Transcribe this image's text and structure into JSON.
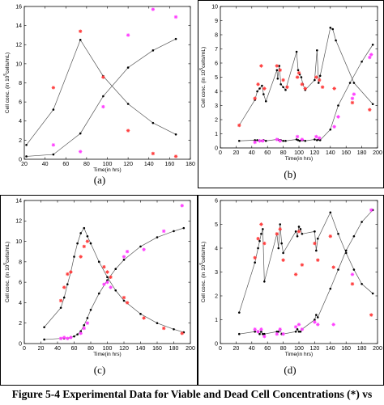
{
  "figure_caption": "Figure 5-4 Experimental Data for Viable and Dead Cell Concentrations (*) vs",
  "colors": {
    "model_line": "#555555",
    "model_marker": "#000000",
    "viable_data": "#ff4040",
    "dead_data": "#ff40ff"
  },
  "chart_data": [
    {
      "panel": "(a)",
      "type": "line",
      "xlabel": "Time(in hrs)",
      "ylabel": "Cell conc. (in 10^5cells/mL)",
      "xlim": [
        20,
        180
      ],
      "ylim": [
        0,
        16
      ],
      "xticks": [
        20,
        40,
        60,
        80,
        100,
        120,
        140,
        160,
        180
      ],
      "yticks": [
        0,
        2,
        4,
        6,
        8,
        10,
        12,
        14,
        16
      ],
      "series": [
        {
          "role": "model-viable",
          "style": "line-dots",
          "x": [
            22,
            48,
            74,
            96,
            120,
            144,
            166
          ],
          "y": [
            1.5,
            5.2,
            12.5,
            8.7,
            5.8,
            3.8,
            2.6
          ]
        },
        {
          "role": "model-dead",
          "style": "line-dots",
          "x": [
            22,
            48,
            74,
            96,
            120,
            144,
            166
          ],
          "y": [
            0.3,
            0.5,
            2.7,
            6.6,
            9.6,
            11.4,
            12.6
          ]
        },
        {
          "role": "data-viable",
          "style": "stars",
          "x": [
            48,
            74,
            96,
            120,
            144,
            166
          ],
          "y": [
            7.5,
            13.4,
            8.6,
            3.0,
            0.6,
            0.3
          ]
        },
        {
          "role": "data-dead",
          "style": "stars",
          "x": [
            48,
            74,
            96,
            120,
            144,
            166
          ],
          "y": [
            1.5,
            0.8,
            5.5,
            13.0,
            15.7,
            14.9
          ]
        }
      ]
    },
    {
      "panel": "(b)",
      "type": "line",
      "xlabel": "Time(in hrs)",
      "ylabel": "Cell conc. (in 10^5cells/mL)",
      "xlim": [
        0,
        200
      ],
      "ylim": [
        0,
        10
      ],
      "xticks": [
        0,
        20,
        40,
        60,
        80,
        100,
        120,
        140,
        160,
        180,
        200
      ],
      "yticks": [
        0,
        1,
        2,
        3,
        4,
        5,
        6,
        7,
        8,
        9,
        10
      ],
      "series": [
        {
          "role": "model-viable",
          "style": "line-dots",
          "x": [
            24,
            44,
            47,
            50,
            53,
            55,
            58,
            72,
            73,
            75,
            77,
            80,
            83,
            97,
            99,
            101,
            103,
            105,
            108,
            120,
            123,
            125,
            127,
            140,
            143,
            147,
            170,
            194
          ],
          "y": [
            1.6,
            3.4,
            4.0,
            4.2,
            4.4,
            3.8,
            3.3,
            5.5,
            4.9,
            5.8,
            4.5,
            4.3,
            4.1,
            6.8,
            5.5,
            5.2,
            5.0,
            4.5,
            4.1,
            4.8,
            6.9,
            4.6,
            5.1,
            8.5,
            8.4,
            7.6,
            4.6,
            3.1
          ]
        },
        {
          "role": "model-dead",
          "style": "line-dots",
          "x": [
            24,
            44,
            47,
            50,
            53,
            55,
            58,
            72,
            73,
            75,
            77,
            80,
            83,
            97,
            99,
            101,
            103,
            105,
            108,
            120,
            123,
            125,
            127,
            140,
            150,
            165,
            180,
            194
          ],
          "y": [
            0.5,
            0.55,
            0.55,
            0.5,
            0.5,
            0.55,
            0.5,
            0.6,
            0.6,
            0.55,
            0.55,
            0.5,
            0.5,
            0.6,
            0.55,
            0.5,
            0.55,
            0.55,
            0.5,
            0.6,
            0.55,
            0.6,
            0.55,
            1.3,
            3.0,
            4.6,
            6.1,
            7.3
          ]
        },
        {
          "role": "data-viable",
          "style": "stars",
          "x": [
            24,
            44,
            48,
            52,
            56,
            72,
            76,
            80,
            85,
            98,
            100,
            104,
            108,
            122,
            126,
            130,
            145,
            168,
            190
          ],
          "y": [
            1.6,
            3.5,
            4.5,
            5.8,
            4.2,
            5.8,
            5.5,
            4.8,
            4.3,
            5.0,
            5.3,
            4.5,
            4.2,
            5.0,
            4.8,
            4.3,
            4.2,
            3.2,
            2.7
          ]
        },
        {
          "role": "data-dead",
          "style": "stars",
          "x": [
            44,
            50,
            54,
            72,
            76,
            98,
            104,
            122,
            126,
            145,
            150,
            168,
            170,
            190,
            192
          ],
          "y": [
            0.4,
            0.5,
            0.5,
            0.6,
            0.5,
            0.8,
            0.6,
            0.8,
            0.7,
            1.5,
            2.2,
            3.5,
            3.8,
            6.4,
            6.6
          ]
        }
      ]
    },
    {
      "panel": "(c)",
      "type": "line",
      "xlabel": "Time(in hrs)",
      "ylabel": "Cell conc. (in 10^5cells/mL)",
      "xlim": [
        0,
        200
      ],
      "ylim": [
        0,
        14
      ],
      "xticks": [
        0,
        20,
        40,
        60,
        80,
        100,
        120,
        140,
        160,
        180,
        200
      ],
      "yticks": [
        0,
        2,
        4,
        6,
        8,
        10,
        12,
        14
      ],
      "series": [
        {
          "role": "model-viable",
          "style": "line-dots",
          "x": [
            24,
            44,
            48,
            52,
            56,
            60,
            64,
            68,
            72,
            76,
            80,
            90,
            100,
            110,
            120,
            140,
            160,
            180,
            192
          ],
          "y": [
            1.6,
            3.5,
            4.5,
            5.8,
            7.0,
            8.5,
            9.8,
            10.8,
            11.3,
            10.5,
            9.8,
            8.0,
            6.5,
            5.2,
            4.2,
            2.9,
            2.0,
            1.4,
            1.1
          ]
        },
        {
          "role": "model-dead",
          "style": "line-dots",
          "x": [
            24,
            44,
            48,
            52,
            56,
            60,
            64,
            68,
            72,
            76,
            80,
            90,
            100,
            110,
            120,
            140,
            160,
            180,
            192
          ],
          "y": [
            0.4,
            0.5,
            0.5,
            0.5,
            0.6,
            0.7,
            0.9,
            1.2,
            1.8,
            2.5,
            3.3,
            4.9,
            6.2,
            7.3,
            8.2,
            9.5,
            10.4,
            11.0,
            11.3
          ]
        },
        {
          "role": "data-viable",
          "style": "stars",
          "x": [
            44,
            48,
            52,
            56,
            68,
            72,
            76,
            96,
            100,
            104,
            120,
            124,
            144,
            168,
            190
          ],
          "y": [
            4.2,
            5.5,
            6.8,
            7.0,
            8.5,
            9.5,
            10.0,
            7.5,
            7.0,
            6.5,
            4.5,
            4.0,
            2.5,
            1.5,
            1.0
          ]
        },
        {
          "role": "data-dead",
          "style": "stars",
          "x": [
            44,
            48,
            52,
            56,
            68,
            72,
            76,
            96,
            100,
            104,
            120,
            124,
            144,
            168,
            190
          ],
          "y": [
            0.5,
            0.6,
            0.5,
            0.6,
            1.0,
            1.5,
            2.0,
            5.8,
            6.0,
            5.5,
            8.5,
            9.0,
            9.2,
            11.0,
            13.5
          ]
        }
      ]
    },
    {
      "panel": "(d)",
      "type": "line",
      "xlabel": "Time(in hrs)",
      "ylabel": "Cell conc. (in 10^5cells/mL)",
      "xlim": [
        0,
        200
      ],
      "ylim": [
        0,
        6
      ],
      "xticks": [
        0,
        20,
        40,
        60,
        80,
        100,
        120,
        140,
        160,
        180,
        200
      ],
      "yticks": [
        0,
        1,
        2,
        3,
        4,
        5,
        6
      ],
      "series": [
        {
          "role": "model-viable",
          "style": "line-dots",
          "x": [
            24,
            44,
            48,
            50,
            52,
            54,
            56,
            72,
            74,
            76,
            78,
            80,
            96,
            98,
            100,
            102,
            104,
            120,
            122,
            124,
            140,
            150,
            160,
            170,
            180,
            194
          ],
          "y": [
            1.3,
            3.4,
            4.0,
            4.3,
            4.6,
            4.8,
            2.6,
            4.6,
            4.0,
            5.0,
            4.2,
            3.8,
            4.7,
            4.5,
            4.9,
            4.8,
            4.6,
            4.7,
            3.9,
            4.4,
            5.5,
            4.6,
            3.8,
            3.1,
            2.5,
            2.1
          ]
        },
        {
          "role": "model-dead",
          "style": "line-dots",
          "x": [
            24,
            44,
            48,
            50,
            52,
            54,
            56,
            72,
            74,
            76,
            78,
            80,
            96,
            98,
            100,
            102,
            104,
            120,
            122,
            124,
            140,
            150,
            160,
            170,
            180,
            194
          ],
          "y": [
            0.4,
            0.5,
            0.5,
            0.4,
            0.5,
            0.4,
            0.4,
            0.5,
            0.5,
            0.6,
            0.4,
            0.4,
            0.5,
            0.6,
            0.5,
            0.5,
            0.6,
            1.0,
            1.2,
            1.1,
            2.3,
            3.1,
            3.9,
            4.5,
            5.1,
            5.6
          ]
        },
        {
          "role": "data-viable",
          "style": "stars",
          "x": [
            44,
            48,
            52,
            56,
            72,
            76,
            80,
            96,
            100,
            104,
            120,
            124,
            140,
            144,
            168,
            192
          ],
          "y": [
            3.6,
            4.4,
            5.0,
            4.2,
            4.6,
            4.8,
            3.5,
            2.9,
            4.7,
            3.3,
            4.2,
            3.5,
            4.5,
            3.2,
            2.5,
            1.2
          ]
        },
        {
          "role": "data-dead",
          "style": "stars",
          "x": [
            44,
            48,
            52,
            56,
            72,
            76,
            80,
            96,
            100,
            104,
            120,
            124,
            144,
            168,
            192
          ],
          "y": [
            0.6,
            0.5,
            0.6,
            0.3,
            0.4,
            0.6,
            0.4,
            0.7,
            0.8,
            0.6,
            0.9,
            0.8,
            0.8,
            2.9,
            5.6
          ]
        }
      ]
    }
  ]
}
